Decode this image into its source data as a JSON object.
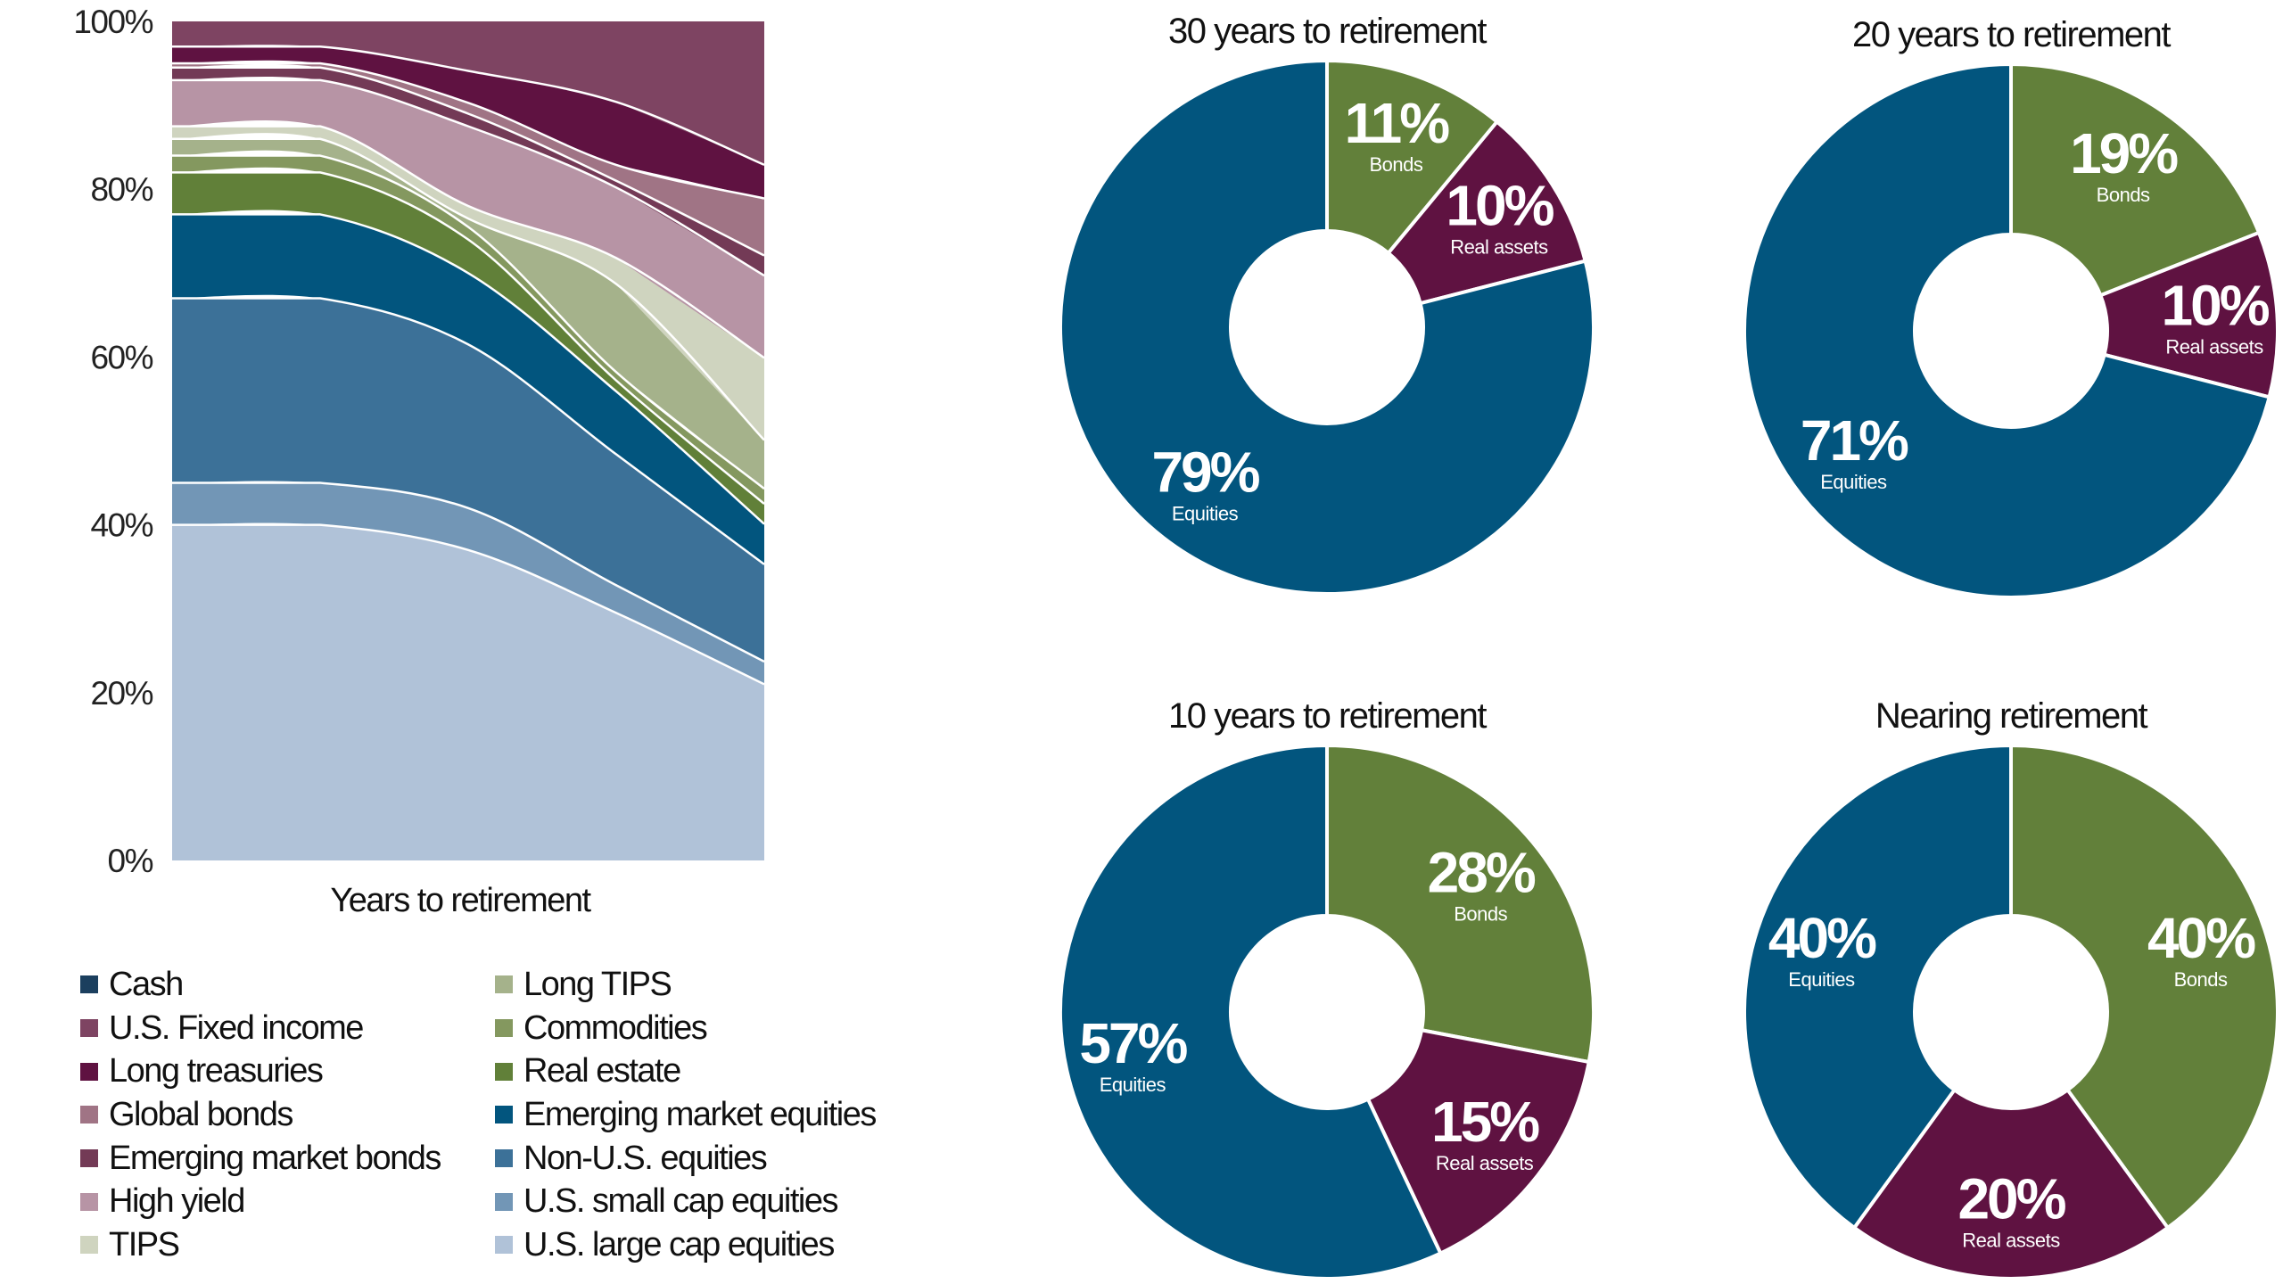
{
  "chart_data": [
    {
      "type": "area",
      "stacked": true,
      "xlabel": "Years to retirement",
      "ylabel": "",
      "ylim": [
        0,
        100
      ],
      "yticks": [
        "0%",
        "20%",
        "40%",
        "60%",
        "80%",
        "100%"
      ],
      "grid": false,
      "legend_position": "bottom",
      "x": [
        0,
        1,
        2,
        3,
        4
      ],
      "series": [
        {
          "name": "U.S. large cap equities",
          "color": "#b0c2d8",
          "values": [
            40,
            40,
            37,
            29.5,
            21
          ]
        },
        {
          "name": "U.S. small cap equities",
          "color": "#7296b6",
          "values": [
            5,
            5,
            5,
            3.3,
            2.7
          ]
        },
        {
          "name": "Non-U.S. equities",
          "color": "#3c7198",
          "values": [
            22,
            22,
            19.5,
            15.6,
            11.6
          ]
        },
        {
          "name": "Emerging market equities",
          "color": "#02557e",
          "values": [
            10,
            10,
            8.5,
            7.5,
            4.8
          ]
        },
        {
          "name": "Real estate",
          "color": "#618039",
          "values": [
            5,
            5,
            4,
            1.3,
            2.4
          ]
        },
        {
          "name": "Commodities",
          "color": "#84985f",
          "values": [
            2,
            2,
            1.5,
            1,
            1.8
          ]
        },
        {
          "name": "Long TIPS",
          "color": "#a5b28b",
          "values": [
            2,
            2,
            1,
            10.5,
            5.8
          ]
        },
        {
          "name": "TIPS",
          "color": "#cfd4bf",
          "values": [
            1.5,
            1.5,
            1.5,
            3.1,
            9.8
          ]
        },
        {
          "name": "High yield",
          "color": "#b794a5",
          "values": [
            5.5,
            5.5,
            9.5,
            8.4,
            9.8
          ]
        },
        {
          "name": "Emerging market bonds",
          "color": "#733a56",
          "values": [
            1.5,
            1.5,
            1.5,
            0.8,
            2.4
          ]
        },
        {
          "name": "Global bonds",
          "color": "#a07485",
          "values": [
            0.5,
            0.5,
            1.3,
            1.9,
            6.8
          ]
        },
        {
          "name": "Long treasuries",
          "color": "#5f1241",
          "values": [
            2,
            2,
            3.8,
            7.5,
            4
          ]
        },
        {
          "name": "U.S. Fixed income",
          "color": "#7e4462",
          "values": [
            3,
            3,
            5.9,
            9.6,
            17.1
          ]
        },
        {
          "name": "Cash",
          "color": "#1b3f5e",
          "values": [
            0,
            0,
            0,
            0,
            0
          ]
        }
      ],
      "legend_columns": [
        [
          "Cash",
          "U.S. Fixed income",
          "Long treasuries",
          "Global bonds",
          "Emerging market bonds",
          "High yield",
          "TIPS"
        ],
        [
          "Long TIPS",
          "Commodities",
          "Real estate",
          "Emerging market equities",
          "Non-U.S. equities",
          "U.S. small cap equities",
          "U.S. large cap equities"
        ]
      ]
    },
    {
      "type": "pie",
      "donut": true,
      "title": "30 years to retirement",
      "slices": [
        {
          "label": "Bonds",
          "value": 11,
          "text": "11%",
          "color": "#62803a"
        },
        {
          "label": "Real assets",
          "value": 10,
          "text": "10%",
          "color": "#5f1241"
        },
        {
          "label": "Equities",
          "value": 79,
          "text": "79%",
          "color": "#02557e"
        }
      ]
    },
    {
      "type": "pie",
      "donut": true,
      "title": "20 years to retirement",
      "slices": [
        {
          "label": "Bonds",
          "value": 19,
          "text": "19%",
          "color": "#62803a"
        },
        {
          "label": "Real assets",
          "value": 10,
          "text": "10%",
          "color": "#5f1241"
        },
        {
          "label": "Equities",
          "value": 71,
          "text": "71%",
          "color": "#02557e"
        }
      ]
    },
    {
      "type": "pie",
      "donut": true,
      "title": "10 years to retirement",
      "slices": [
        {
          "label": "Bonds",
          "value": 28,
          "text": "28%",
          "color": "#62803a"
        },
        {
          "label": "Real assets",
          "value": 15,
          "text": "15%",
          "color": "#5f1241"
        },
        {
          "label": "Equities",
          "value": 57,
          "text": "57%",
          "color": "#02557e"
        }
      ]
    },
    {
      "type": "pie",
      "donut": true,
      "title": "Nearing retirement",
      "slices": [
        {
          "label": "Bonds",
          "value": 40,
          "text": "40%",
          "color": "#62803a"
        },
        {
          "label": "Real assets",
          "value": 20,
          "text": "20%",
          "color": "#5f1241"
        },
        {
          "label": "Equities",
          "value": 40,
          "text": "40%",
          "color": "#02557e"
        }
      ]
    }
  ]
}
